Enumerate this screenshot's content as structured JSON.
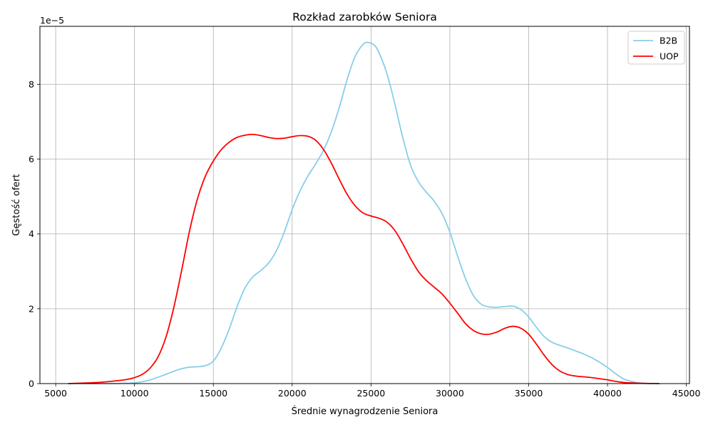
{
  "chart_data": {
    "type": "line",
    "title": "Rozkład zarobków Seniora",
    "xlabel": "Średnie wynagrodzenie Seniora",
    "ylabel": "Gęstość ofert",
    "y_offset_text": "1e−5",
    "xlim": [
      4000,
      45200
    ],
    "ylim": [
      0,
      9.55
    ],
    "x_ticks": [
      5000,
      10000,
      15000,
      20000,
      25000,
      30000,
      35000,
      40000,
      45000
    ],
    "y_ticks": [
      0,
      2,
      4,
      6,
      8
    ],
    "grid": true,
    "legend_position": "top-right",
    "series": [
      {
        "name": "B2B",
        "color": "#87ceeb",
        "points": [
          [
            5800,
            0
          ],
          [
            8000,
            0
          ],
          [
            9000,
            0.005
          ],
          [
            10000,
            0.02
          ],
          [
            11000,
            0.1
          ],
          [
            12000,
            0.25
          ],
          [
            12500,
            0.33
          ],
          [
            13000,
            0.4
          ],
          [
            13500,
            0.44
          ],
          [
            14000,
            0.45
          ],
          [
            14500,
            0.48
          ],
          [
            15000,
            0.6
          ],
          [
            15500,
            0.95
          ],
          [
            16000,
            1.45
          ],
          [
            16500,
            2.05
          ],
          [
            17000,
            2.55
          ],
          [
            17500,
            2.85
          ],
          [
            18000,
            3.02
          ],
          [
            18500,
            3.22
          ],
          [
            19000,
            3.55
          ],
          [
            19500,
            4.05
          ],
          [
            20000,
            4.65
          ],
          [
            20500,
            5.15
          ],
          [
            21000,
            5.55
          ],
          [
            21500,
            5.88
          ],
          [
            22000,
            6.25
          ],
          [
            22500,
            6.75
          ],
          [
            23000,
            7.4
          ],
          [
            23500,
            8.15
          ],
          [
            24000,
            8.75
          ],
          [
            24500,
            9.07
          ],
          [
            24800,
            9.12
          ],
          [
            25200,
            9.05
          ],
          [
            25500,
            8.85
          ],
          [
            26000,
            8.3
          ],
          [
            26500,
            7.5
          ],
          [
            27000,
            6.6
          ],
          [
            27500,
            5.85
          ],
          [
            28000,
            5.4
          ],
          [
            28500,
            5.12
          ],
          [
            29000,
            4.88
          ],
          [
            29500,
            4.55
          ],
          [
            30000,
            4.05
          ],
          [
            30500,
            3.4
          ],
          [
            31000,
            2.8
          ],
          [
            31500,
            2.35
          ],
          [
            32000,
            2.12
          ],
          [
            32500,
            2.05
          ],
          [
            33000,
            2.04
          ],
          [
            33500,
            2.06
          ],
          [
            34000,
            2.07
          ],
          [
            34500,
            1.98
          ],
          [
            35000,
            1.78
          ],
          [
            35500,
            1.5
          ],
          [
            36000,
            1.25
          ],
          [
            36500,
            1.1
          ],
          [
            37000,
            1.02
          ],
          [
            37500,
            0.95
          ],
          [
            38000,
            0.87
          ],
          [
            38500,
            0.79
          ],
          [
            39000,
            0.69
          ],
          [
            39500,
            0.57
          ],
          [
            40000,
            0.43
          ],
          [
            40500,
            0.27
          ],
          [
            41000,
            0.13
          ],
          [
            41500,
            0.06
          ],
          [
            42000,
            0.02
          ],
          [
            42500,
            0.005
          ],
          [
            43300,
            0
          ]
        ]
      },
      {
        "name": "UOP",
        "color": "#ff0000",
        "points": [
          [
            5800,
            0
          ],
          [
            6500,
            0.01
          ],
          [
            7500,
            0.025
          ],
          [
            8500,
            0.06
          ],
          [
            9500,
            0.11
          ],
          [
            10000,
            0.16
          ],
          [
            10500,
            0.25
          ],
          [
            11000,
            0.42
          ],
          [
            11500,
            0.72
          ],
          [
            12000,
            1.25
          ],
          [
            12500,
            2.05
          ],
          [
            13000,
            3.05
          ],
          [
            13500,
            4.1
          ],
          [
            14000,
            4.95
          ],
          [
            14500,
            5.55
          ],
          [
            15000,
            5.95
          ],
          [
            15500,
            6.25
          ],
          [
            16000,
            6.45
          ],
          [
            16500,
            6.58
          ],
          [
            17000,
            6.64
          ],
          [
            17500,
            6.66
          ],
          [
            18000,
            6.63
          ],
          [
            18500,
            6.58
          ],
          [
            19000,
            6.55
          ],
          [
            19500,
            6.56
          ],
          [
            20000,
            6.6
          ],
          [
            20500,
            6.63
          ],
          [
            21000,
            6.61
          ],
          [
            21500,
            6.5
          ],
          [
            22000,
            6.25
          ],
          [
            22500,
            5.88
          ],
          [
            23000,
            5.45
          ],
          [
            23500,
            5.05
          ],
          [
            24000,
            4.75
          ],
          [
            24500,
            4.56
          ],
          [
            25000,
            4.48
          ],
          [
            25500,
            4.42
          ],
          [
            26000,
            4.32
          ],
          [
            26500,
            4.1
          ],
          [
            27000,
            3.75
          ],
          [
            27500,
            3.35
          ],
          [
            28000,
            3.0
          ],
          [
            28500,
            2.76
          ],
          [
            29000,
            2.58
          ],
          [
            29500,
            2.4
          ],
          [
            30000,
            2.15
          ],
          [
            30500,
            1.88
          ],
          [
            31000,
            1.6
          ],
          [
            31500,
            1.42
          ],
          [
            32000,
            1.33
          ],
          [
            32500,
            1.32
          ],
          [
            33000,
            1.38
          ],
          [
            33500,
            1.48
          ],
          [
            34000,
            1.53
          ],
          [
            34500,
            1.48
          ],
          [
            35000,
            1.32
          ],
          [
            35500,
            1.05
          ],
          [
            36000,
            0.75
          ],
          [
            36500,
            0.5
          ],
          [
            37000,
            0.33
          ],
          [
            37500,
            0.24
          ],
          [
            38000,
            0.2
          ],
          [
            38500,
            0.18
          ],
          [
            39000,
            0.16
          ],
          [
            39500,
            0.13
          ],
          [
            40000,
            0.1
          ],
          [
            40500,
            0.06
          ],
          [
            41000,
            0.03
          ],
          [
            42000,
            0.01
          ],
          [
            43300,
            0
          ]
        ]
      }
    ]
  }
}
